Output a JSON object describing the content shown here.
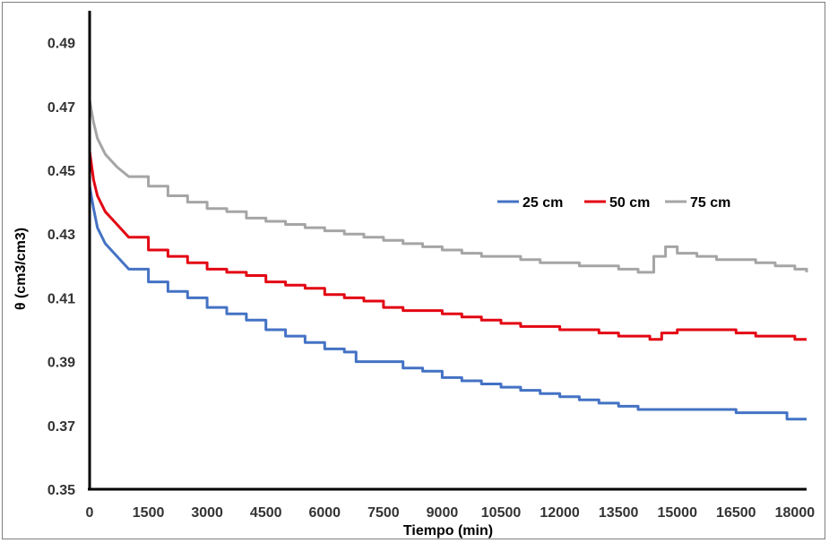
{
  "chart_data": {
    "type": "line",
    "xlabel": "Tiempo (min)",
    "ylabel": "θ (cm3/cm3)",
    "xlim": [
      0,
      18300
    ],
    "ylim": [
      0.35,
      0.5
    ],
    "x_ticks": [
      "0",
      "1500",
      "3000",
      "4500",
      "6000",
      "7500",
      "9000",
      "10500",
      "12000",
      "13500",
      "15000",
      "16500",
      "18000"
    ],
    "x_tick_values": [
      0,
      1500,
      3000,
      4500,
      6000,
      7500,
      9000,
      10500,
      12000,
      13500,
      15000,
      16500,
      18000
    ],
    "y_ticks": [
      "0.35",
      "0.37",
      "0.39",
      "0.41",
      "0.43",
      "0.45",
      "0.47",
      "0.49"
    ],
    "y_tick_values": [
      0.35,
      0.37,
      0.39,
      0.41,
      0.43,
      0.45,
      0.47,
      0.49
    ],
    "grid": false,
    "legend_position": "right-middle",
    "series": [
      {
        "name": "25 cm",
        "color": "#4472C4",
        "x": [
          0,
          100,
          200,
          400,
          700,
          1000,
          1500,
          2000,
          2500,
          3000,
          3500,
          4000,
          4500,
          5000,
          5500,
          6000,
          6500,
          6800,
          7200,
          8000,
          8500,
          9000,
          9500,
          10000,
          10500,
          11000,
          11500,
          12000,
          12500,
          13000,
          13500,
          14000,
          14500,
          15000,
          15500,
          16000,
          16500,
          17000,
          17500,
          17800,
          18300
        ],
        "y": [
          0.445,
          0.438,
          0.432,
          0.427,
          0.423,
          0.419,
          0.415,
          0.412,
          0.41,
          0.407,
          0.405,
          0.403,
          0.4,
          0.398,
          0.396,
          0.394,
          0.393,
          0.39,
          0.39,
          0.388,
          0.387,
          0.385,
          0.384,
          0.383,
          0.382,
          0.381,
          0.38,
          0.379,
          0.378,
          0.377,
          0.376,
          0.375,
          0.375,
          0.375,
          0.375,
          0.375,
          0.374,
          0.374,
          0.374,
          0.372,
          0.372
        ]
      },
      {
        "name": "50 cm",
        "color": "#E30613",
        "x": [
          0,
          100,
          200,
          400,
          700,
          1000,
          1500,
          2000,
          2500,
          3000,
          3500,
          4000,
          4500,
          5000,
          5500,
          6000,
          6500,
          7000,
          7500,
          8000,
          9000,
          9500,
          10000,
          10500,
          11000,
          11500,
          12000,
          12500,
          13000,
          13500,
          14000,
          14300,
          14600,
          15000,
          15500,
          16000,
          16500,
          17000,
          17500,
          18000,
          18300
        ],
        "y": [
          0.456,
          0.447,
          0.442,
          0.437,
          0.433,
          0.429,
          0.425,
          0.423,
          0.421,
          0.419,
          0.418,
          0.417,
          0.415,
          0.414,
          0.413,
          0.411,
          0.41,
          0.409,
          0.407,
          0.406,
          0.405,
          0.404,
          0.403,
          0.402,
          0.401,
          0.401,
          0.4,
          0.4,
          0.399,
          0.398,
          0.398,
          0.397,
          0.399,
          0.4,
          0.4,
          0.4,
          0.399,
          0.398,
          0.398,
          0.397,
          0.397
        ]
      },
      {
        "name": "75 cm",
        "color": "#A5A5A5",
        "x": [
          0,
          100,
          200,
          400,
          700,
          1000,
          1500,
          2000,
          2500,
          3000,
          3500,
          4000,
          4500,
          5000,
          5500,
          6000,
          6500,
          7000,
          7500,
          8000,
          8500,
          9000,
          9500,
          10000,
          10500,
          11000,
          11500,
          12000,
          12500,
          13000,
          13500,
          14000,
          14200,
          14400,
          14700,
          15000,
          15500,
          16000,
          16500,
          17000,
          17500,
          18000,
          18300
        ],
        "y": [
          0.472,
          0.465,
          0.46,
          0.455,
          0.451,
          0.448,
          0.445,
          0.442,
          0.44,
          0.438,
          0.437,
          0.435,
          0.434,
          0.433,
          0.432,
          0.431,
          0.43,
          0.429,
          0.428,
          0.427,
          0.426,
          0.425,
          0.424,
          0.423,
          0.423,
          0.422,
          0.421,
          0.421,
          0.42,
          0.42,
          0.419,
          0.418,
          0.418,
          0.423,
          0.426,
          0.424,
          0.423,
          0.422,
          0.422,
          0.421,
          0.42,
          0.419,
          0.418
        ]
      }
    ]
  }
}
